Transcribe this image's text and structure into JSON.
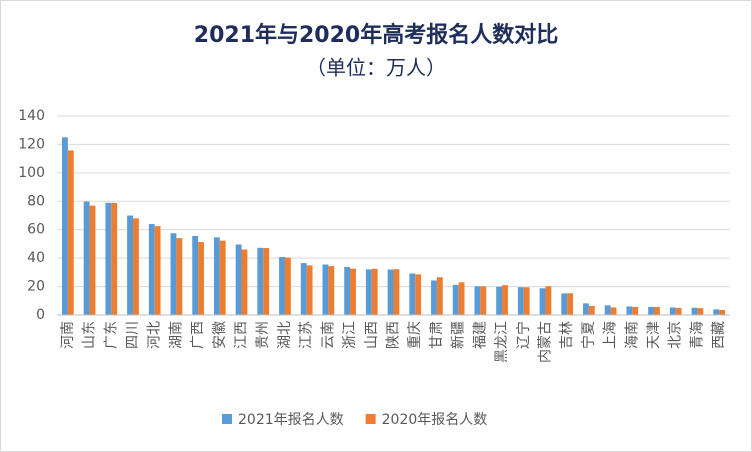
{
  "chart_data": {
    "type": "bar",
    "title": "2021年与2020年高考报名人数对比",
    "subtitle": "（单位：万人）",
    "categories": [
      "河南",
      "山东",
      "广东",
      "四川",
      "河北",
      "湖南",
      "广西",
      "安徽",
      "江西",
      "贵州",
      "湖北",
      "江苏",
      "云南",
      "浙江",
      "山西",
      "陕西",
      "重庆",
      "甘肃",
      "新疆",
      "福建",
      "黑龙江",
      "辽宁",
      "内蒙古",
      "吉林",
      "宁夏",
      "上海",
      "海南",
      "天津",
      "北京",
      "青海",
      "西藏"
    ],
    "series": [
      {
        "name": "2021年报名人数",
        "color": "#5b9bd5",
        "values": [
          125,
          79.8,
          78.9,
          70,
          64,
          57.5,
          55.6,
          54.6,
          49.6,
          47.3,
          40.8,
          36.5,
          35.5,
          33.8,
          32.1,
          32,
          29.2,
          24.3,
          21.2,
          20.2,
          19.9,
          19.6,
          18.8,
          15.2,
          8.2,
          6.8,
          6,
          5.7,
          5.3,
          5.1,
          4
        ]
      },
      {
        "name": "2020年报名人数",
        "color": "#ed7d31",
        "values": [
          115.8,
          76.9,
          78.8,
          68,
          62.5,
          54.1,
          51.3,
          52.3,
          46.1,
          47.1,
          40.4,
          34.9,
          34.4,
          32.6,
          32.5,
          32.2,
          28.6,
          26.6,
          23,
          20.2,
          21,
          19.5,
          20.3,
          15.3,
          6.4,
          5.3,
          5.7,
          5.6,
          4.9,
          4.8,
          3.5
        ]
      }
    ],
    "ylim": [
      0,
      140
    ],
    "yticks": [
      0,
      20,
      40,
      60,
      80,
      100,
      120,
      140
    ],
    "grid": true,
    "legend": "bottom"
  }
}
